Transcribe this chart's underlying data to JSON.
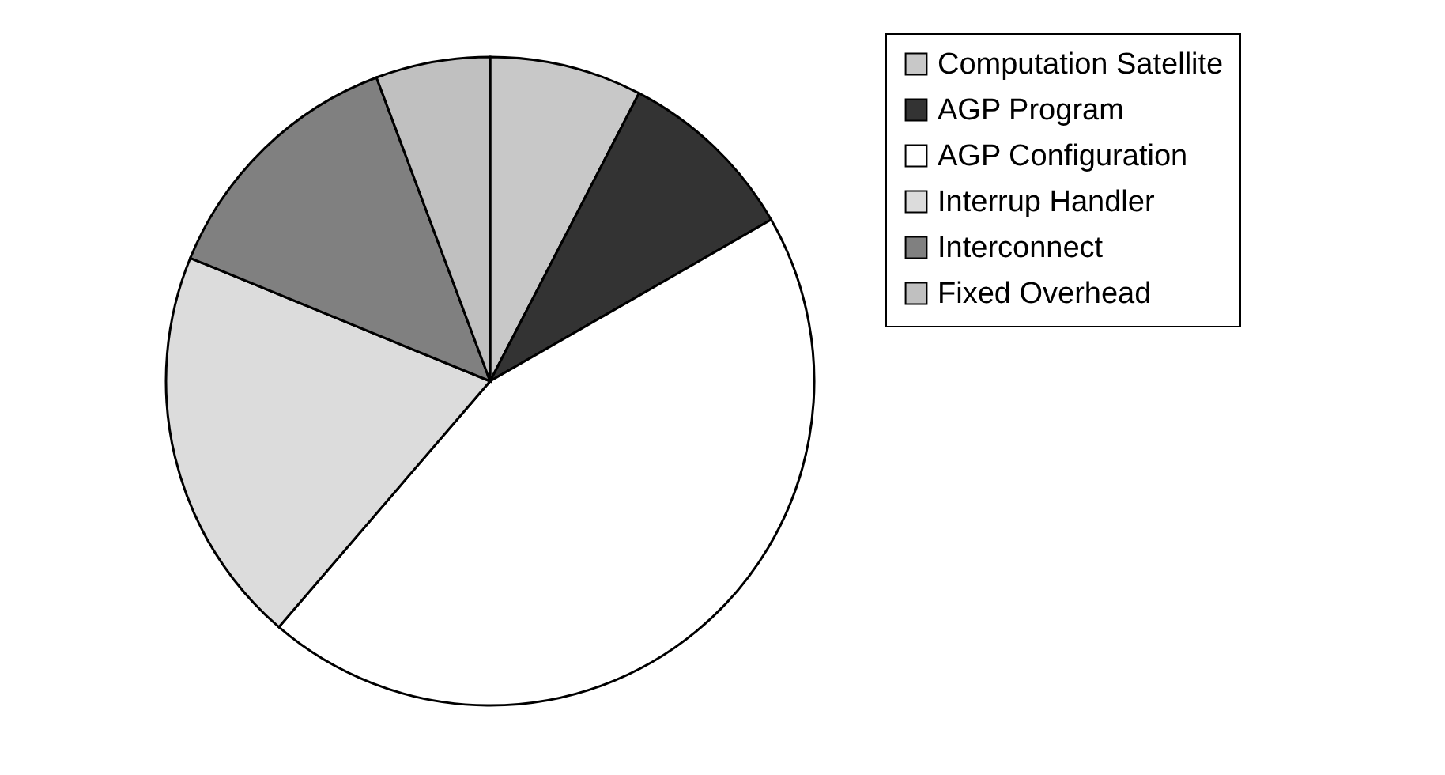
{
  "chart_data": {
    "type": "pie",
    "categories": [
      "Computation Satellite",
      "AGP Program",
      "AGP Configuration",
      "Interrup Handler",
      "Interconnect",
      "Fixed Overhead"
    ],
    "values": [
      7.6,
      9.1,
      44.6,
      19.9,
      13.1,
      5.7
    ],
    "colors": [
      "#c8c8c8",
      "#333333",
      "#ffffff",
      "#dcdcdc",
      "#808080",
      "#c0c0c0"
    ],
    "legend": "right"
  }
}
